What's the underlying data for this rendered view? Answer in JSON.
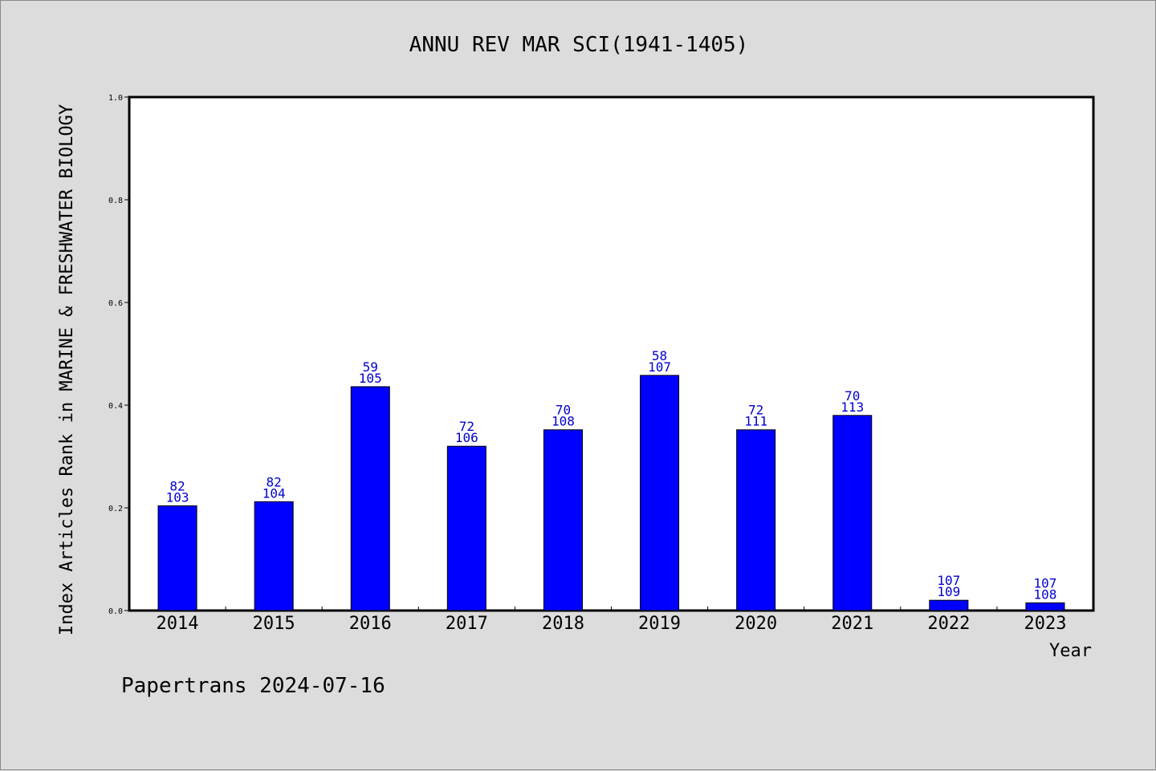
{
  "chart_data": {
    "type": "bar",
    "title": "ANNU REV MAR SCI(1941-1405)",
    "xlabel": "Year",
    "ylabel": "Index Articles Rank in MARINE & FRESHWATER BIOLOGY",
    "ylim": [
      0,
      1.0
    ],
    "yticks": [
      "0.0",
      "0.2",
      "0.4",
      "0.6",
      "0.8",
      "1.0"
    ],
    "categories": [
      "2014",
      "2015",
      "2016",
      "2017",
      "2018",
      "2019",
      "2020",
      "2021",
      "2022",
      "2023"
    ],
    "values": [
      0.204,
      0.212,
      0.436,
      0.32,
      0.352,
      0.458,
      0.352,
      0.38,
      0.02,
      0.015
    ],
    "rank": [
      "82",
      "82",
      "59",
      "72",
      "70",
      "58",
      "72",
      "70",
      "107",
      "107"
    ],
    "total": [
      "103",
      "104",
      "105",
      "106",
      "108",
      "107",
      "111",
      "113",
      "109",
      "108"
    ],
    "bar_color": "#0000ff",
    "label_color": "#0000cc",
    "grid": false,
    "legend": "none"
  },
  "footer": "Papertrans 2024-07-16"
}
